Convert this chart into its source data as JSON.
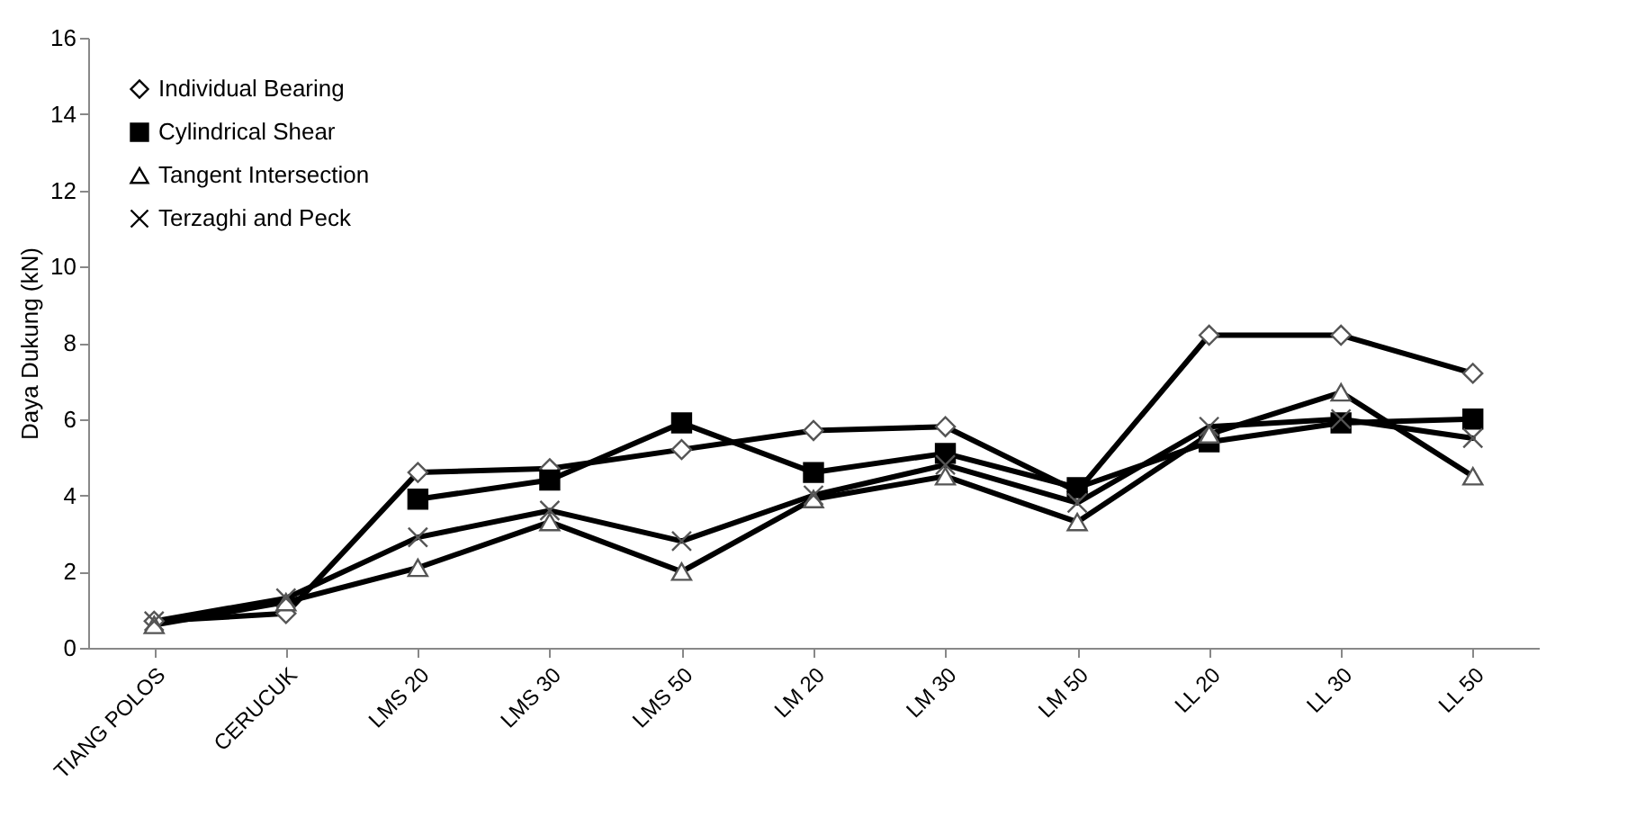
{
  "chart_data": {
    "type": "line",
    "ylabel": "Daya Dukung (kN)",
    "categories": [
      "TIANG POLOS",
      "CERUCUK",
      "LMS 20",
      "LMS 30",
      "LMS 50",
      "LM 20",
      "LM 30",
      "LM 50",
      "LL 20",
      "LL 30",
      "LL 50"
    ],
    "series": [
      {
        "name": "Individual Bearing",
        "color": "#000000",
        "marker": "diamond",
        "values": [
          0.7,
          0.9,
          4.6,
          4.7,
          5.2,
          5.7,
          5.8,
          4.1,
          8.2,
          8.2,
          7.2
        ]
      },
      {
        "name": "Cylindrical Shear",
        "color": "#000000",
        "marker": "square",
        "values": [
          null,
          null,
          3.9,
          4.4,
          5.9,
          4.6,
          5.1,
          4.2,
          5.4,
          5.9,
          6.0
        ]
      },
      {
        "name": "Tangent Intersection",
        "color": "#000000",
        "marker": "triangle",
        "values": [
          0.6,
          1.2,
          2.1,
          3.3,
          2.0,
          3.9,
          4.5,
          3.3,
          5.6,
          6.7,
          4.5
        ]
      },
      {
        "name": "Terzaghi and Peck",
        "color": "#000000",
        "marker": "cross",
        "values": [
          0.7,
          1.3,
          2.9,
          3.6,
          2.8,
          4.0,
          4.8,
          3.8,
          5.8,
          6.0,
          5.5
        ]
      }
    ],
    "ylim": [
      0,
      16
    ],
    "yticks": [
      0,
      2,
      4,
      6,
      8,
      10,
      12,
      14,
      16
    ],
    "grid": false,
    "legend": "top left",
    "line_style": "solid"
  }
}
